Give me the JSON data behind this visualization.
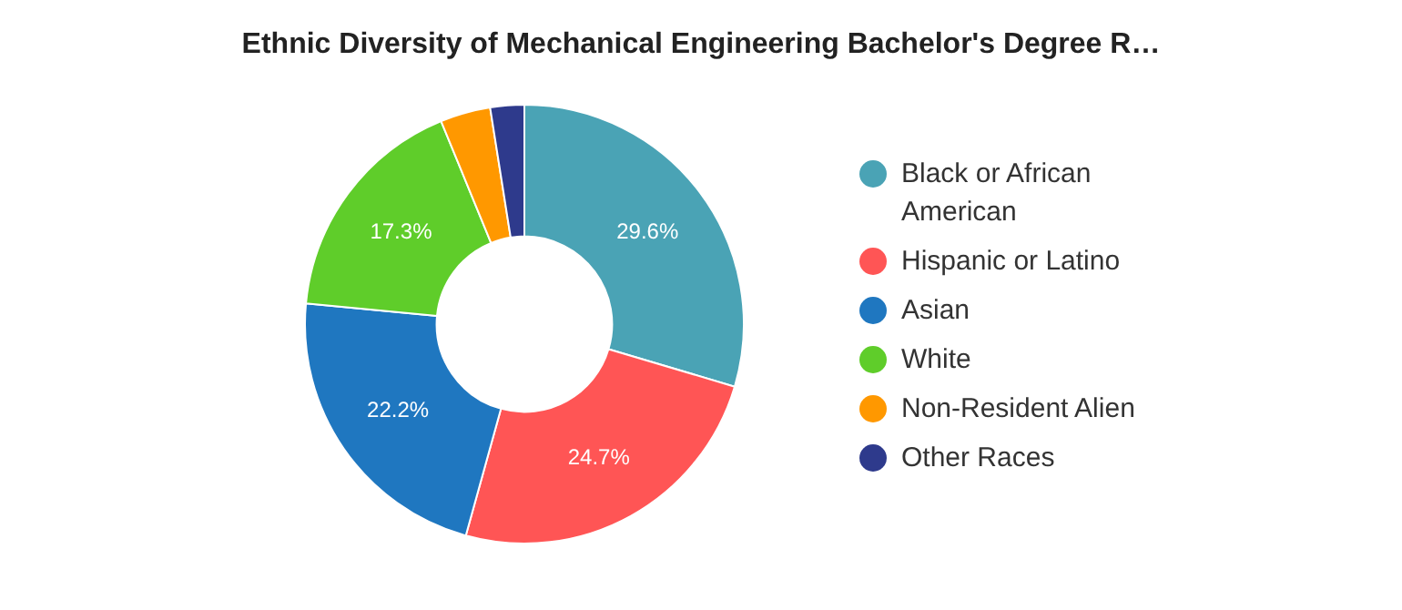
{
  "chart_data": {
    "type": "donut",
    "title": "Ethnic Diversity of Mechanical Engineering Bachelor's Degree R…",
    "categories": [
      "Black or African American",
      "Hispanic or Latino",
      "Asian",
      "White",
      "Non-Resident Alien",
      "Other Races"
    ],
    "values": [
      29.6,
      24.7,
      22.2,
      17.3,
      3.7,
      2.5
    ],
    "colors": [
      "#4aa3b5",
      "#ff5555",
      "#1f77c0",
      "#5fcd2a",
      "#ff9800",
      "#2e3a8c"
    ],
    "value_labels": [
      "29.6%",
      "24.7%",
      "22.2%",
      "17.3%",
      null,
      null
    ],
    "legend": "right"
  }
}
